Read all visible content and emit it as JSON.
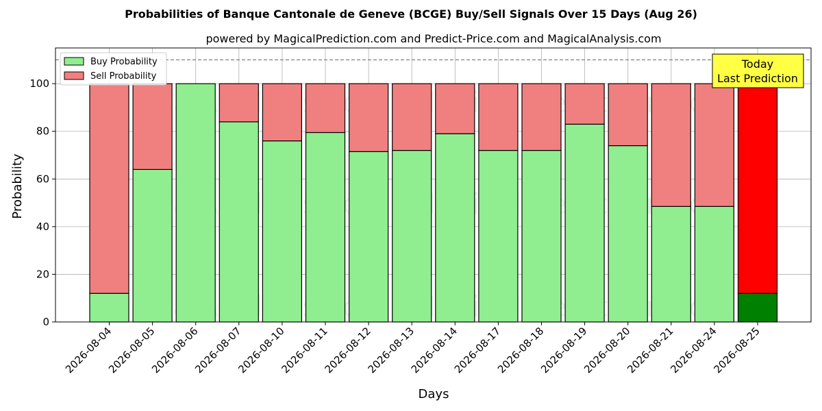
{
  "chart_data": {
    "type": "bar",
    "stacked": true,
    "title": "Probabilities of Banque Cantonale de Geneve (BCGE) Buy/Sell Signals Over 15 Days (Aug 26)",
    "subtitle": "powered by MagicalPrediction.com and Predict-Price.com and MagicalAnalysis.com",
    "xlabel": "Days",
    "ylabel": "Probability",
    "ylim": [
      0,
      115
    ],
    "yticks": [
      0,
      20,
      40,
      60,
      80,
      100
    ],
    "grid": true,
    "legend_position": "top-left",
    "reference_line": 110,
    "categories": [
      "2026-08-04",
      "2026-08-05",
      "2026-08-06",
      "2026-08-07",
      "2026-08-10",
      "2026-08-11",
      "2026-08-12",
      "2026-08-13",
      "2026-08-14",
      "2026-08-17",
      "2026-08-18",
      "2026-08-19",
      "2026-08-20",
      "2026-08-21",
      "2026-08-24",
      "2026-08-25"
    ],
    "series": [
      {
        "name": "Buy Probability",
        "color": "#90ee90",
        "values": [
          12,
          64,
          100,
          84,
          76,
          79.5,
          71.5,
          72,
          79,
          72,
          72,
          83,
          74,
          48.5,
          48.5,
          12
        ]
      },
      {
        "name": "Sell Probability",
        "color": "#f08080",
        "values": [
          88,
          36,
          0,
          16,
          24,
          20.5,
          28.5,
          28,
          21,
          28,
          28,
          17,
          26,
          51.5,
          51.5,
          88
        ]
      }
    ],
    "highlight": {
      "index": 15,
      "buy_color": "#008000",
      "sell_color": "#ff0000"
    },
    "annotation": {
      "lines": [
        "Today",
        "Last Prediction"
      ],
      "background": "#ffff44"
    },
    "watermarks": [
      "MagicalAnalysis.com",
      "MagicalPrediction.com"
    ]
  }
}
